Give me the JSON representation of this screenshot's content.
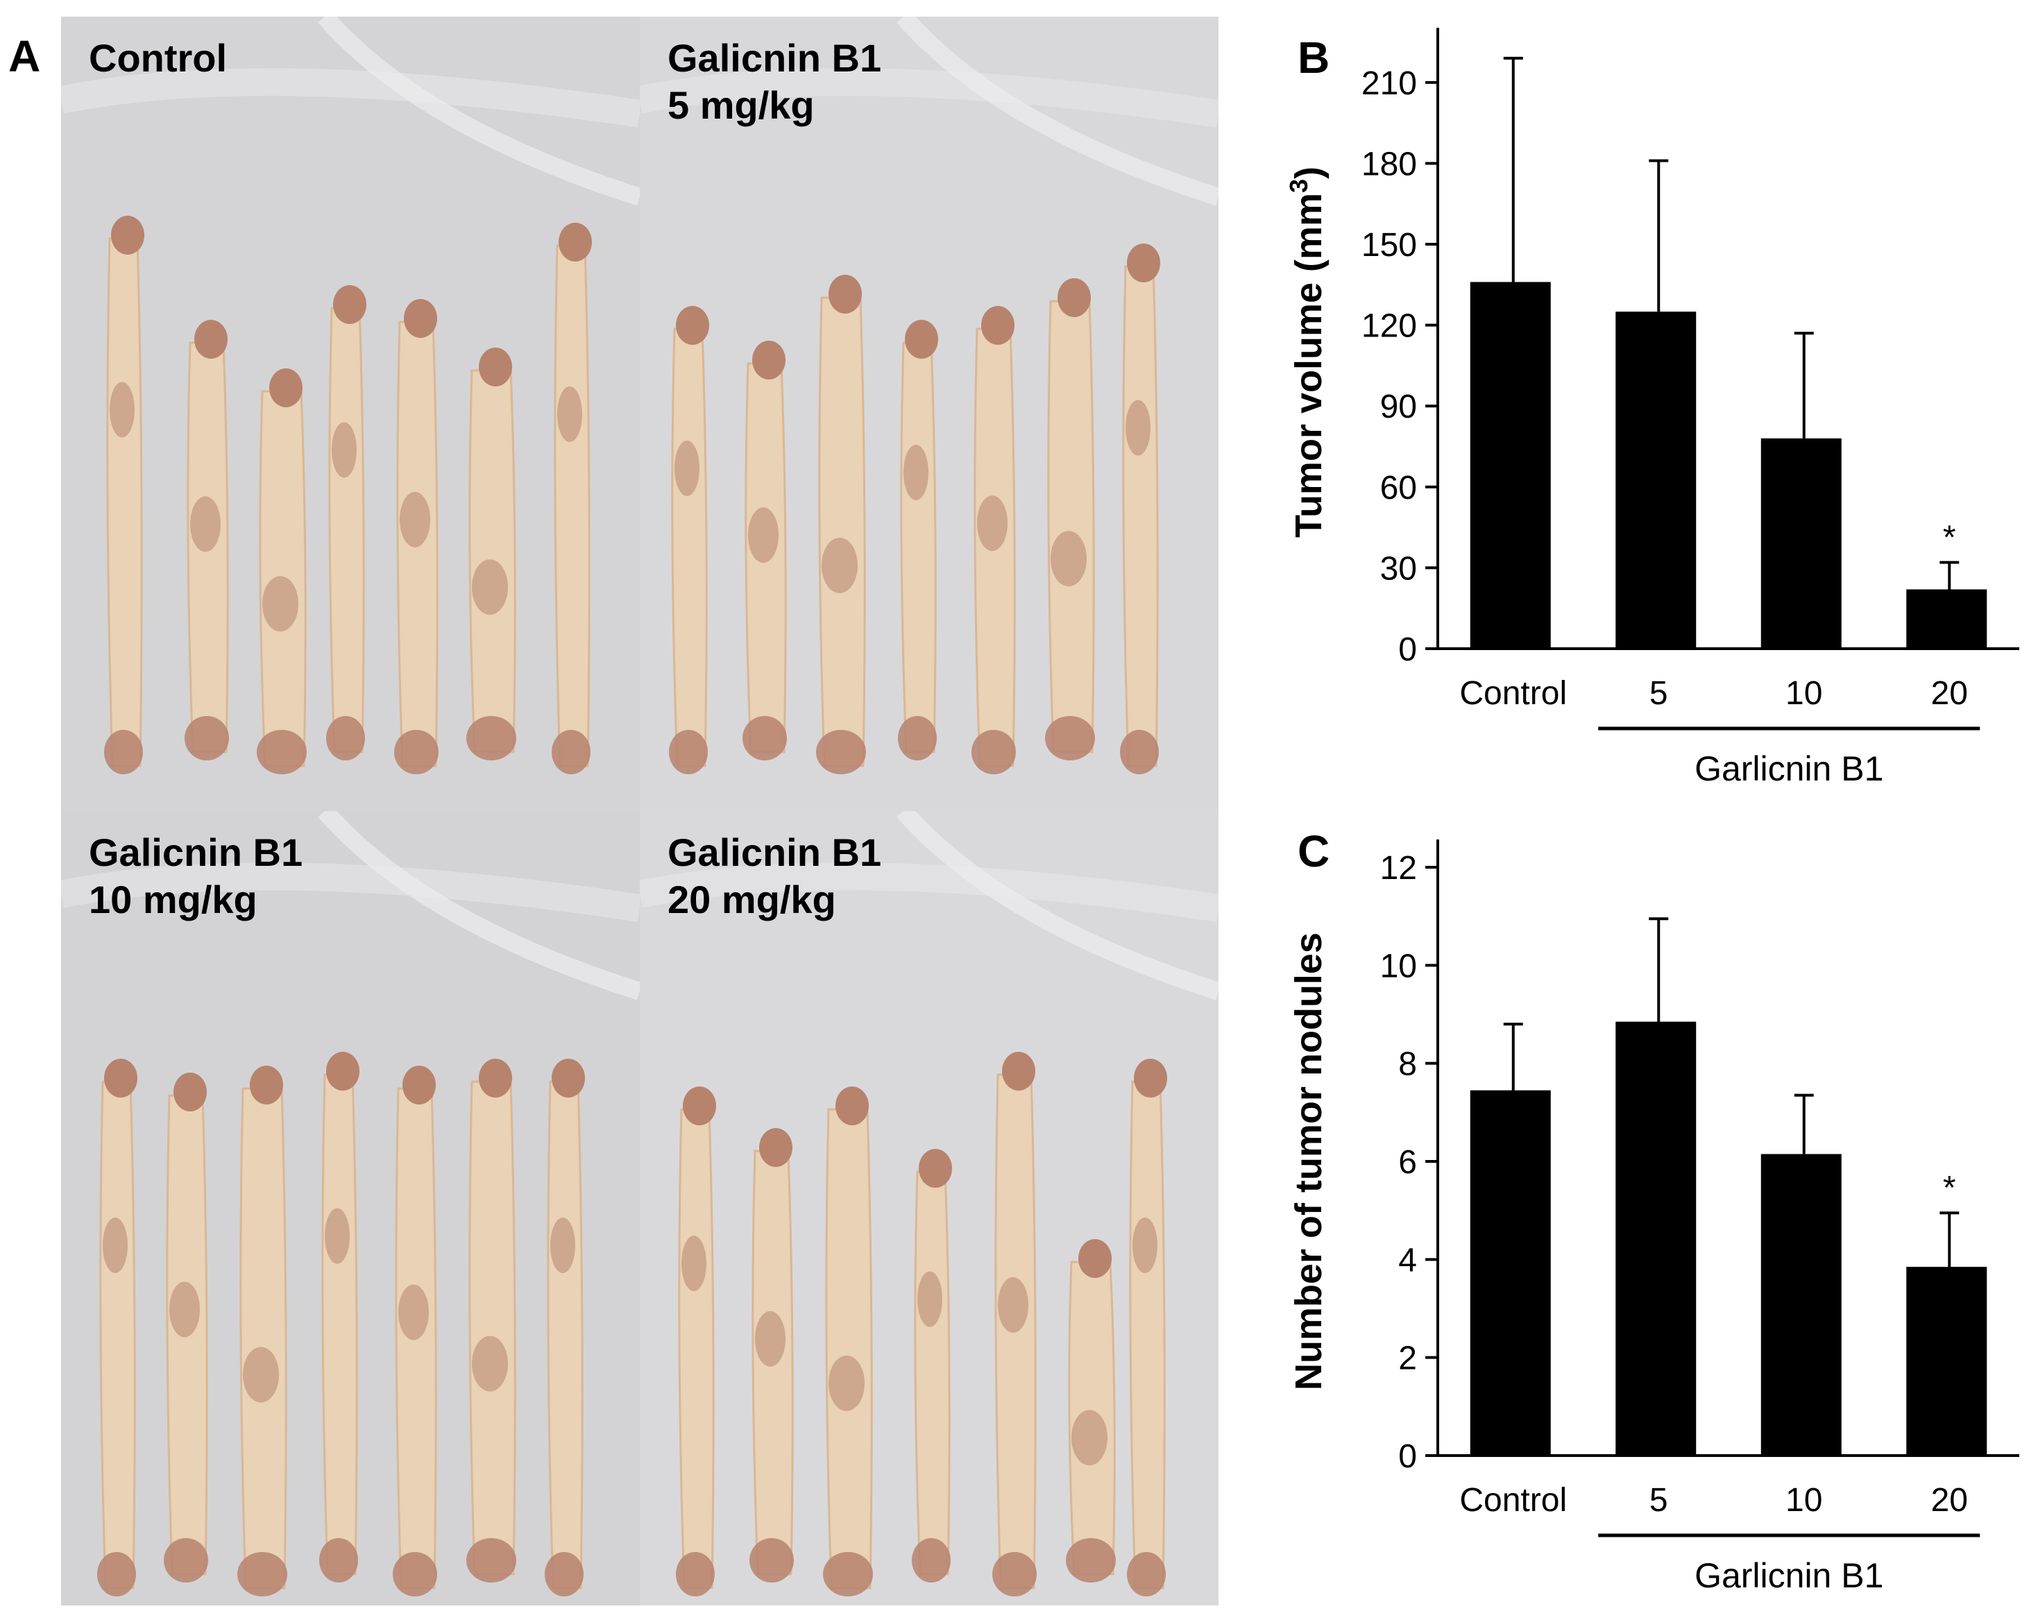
{
  "panels": {
    "a": "A",
    "b": "B",
    "c": "C"
  },
  "photos": [
    {
      "label": "Control",
      "bg": "#d4d4d6"
    },
    {
      "label": "Galicnin B1\n5 mg/kg",
      "bg": "#d8d8db"
    },
    {
      "label": "Galicnin B1\n10 mg/kg",
      "bg": "#d3d3d5"
    },
    {
      "label": "Galicnin B1\n20 mg/kg",
      "bg": "#d9d9dc"
    }
  ],
  "colors": {
    "bar": "#000000",
    "tissue": "#e9d2b5",
    "tumor": "#b7836d"
  },
  "chart_data": [
    {
      "type": "bar",
      "categories": [
        "Control",
        "5",
        "10",
        "20"
      ],
      "values": [
        136,
        125,
        78,
        22
      ],
      "errors": [
        83,
        56,
        39,
        10
      ],
      "annotations": [
        "",
        "",
        "",
        "*"
      ],
      "ylabel_main": "Tumor volume (mm",
      "ylabel_sup": "3",
      "ylabel_end": ")",
      "yticks": [
        0,
        30,
        60,
        90,
        120,
        150,
        180,
        210
      ],
      "ylim": [
        0,
        220
      ],
      "group_label": "Garlicnin B1",
      "group_categories": [
        "5",
        "10",
        "20"
      ]
    },
    {
      "type": "bar",
      "categories": [
        "Control",
        "5",
        "10",
        "20"
      ],
      "values": [
        7.45,
        8.85,
        6.15,
        3.85
      ],
      "errors": [
        1.35,
        2.1,
        1.2,
        1.1
      ],
      "annotations": [
        "",
        "",
        "",
        "*"
      ],
      "ylabel_main": "Number of tumor nodules",
      "ylabel_sup": "",
      "ylabel_end": "",
      "yticks": [
        0,
        2,
        4,
        6,
        8,
        10,
        12
      ],
      "ylim": [
        0,
        12
      ],
      "group_label": "Garlicnin B1",
      "group_categories": [
        "5",
        "10",
        "20"
      ]
    }
  ]
}
